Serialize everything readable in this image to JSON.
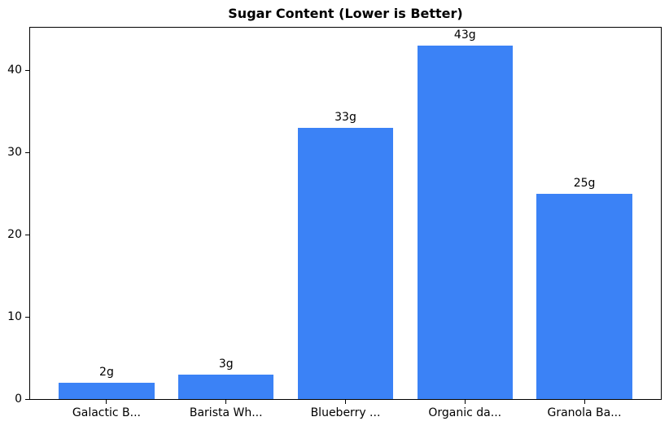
{
  "chart_data": {
    "type": "bar",
    "title": "Sugar Content (Lower is Better)",
    "categories": [
      "Galactic B...",
      "Barista Wh...",
      "Blueberry ...",
      "Organic da...",
      "Granola Ba..."
    ],
    "values": [
      2,
      3,
      33,
      43,
      25
    ],
    "bar_labels": [
      "2g",
      "3g",
      "33g",
      "43g",
      "25g"
    ],
    "xlabel": "",
    "ylabel": "",
    "yticks": [
      0,
      10,
      20,
      30,
      40
    ],
    "ylim": [
      0,
      45.15
    ],
    "xlim": [
      -0.64,
      4.64
    ],
    "bar_width_units": 0.8,
    "grid": false,
    "legend": null,
    "bar_color": "#3b82f6",
    "text_color": "#000000",
    "spine_color": "#000000",
    "background_color": "#ffffff"
  }
}
